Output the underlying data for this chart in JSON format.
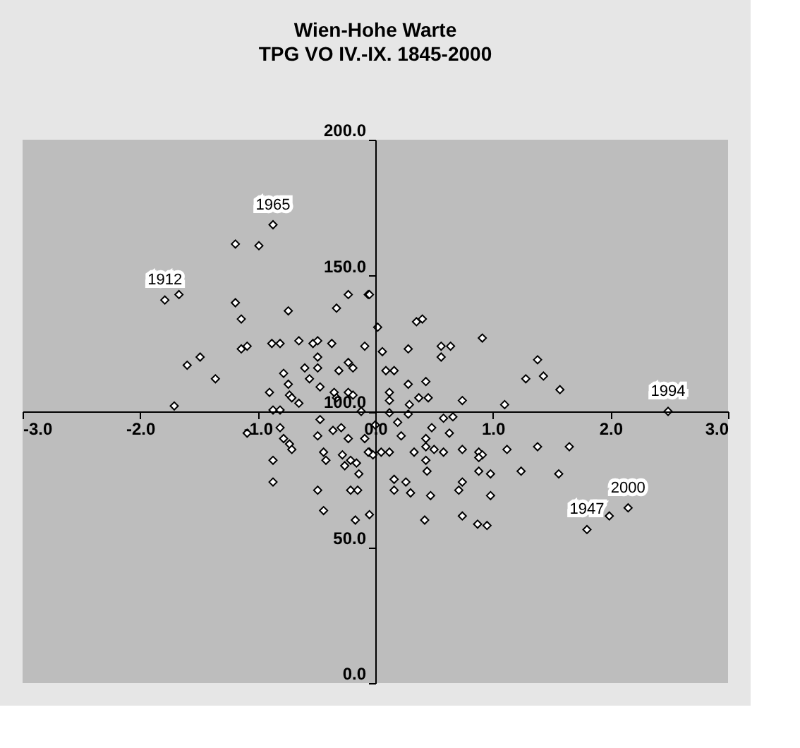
{
  "chart_data": {
    "type": "scatter",
    "title": "Wien-Hohe Warte",
    "subtitle": "TPG VO IV.-IX. 1845-2000",
    "marker": "diamond",
    "grid": false,
    "legend": false,
    "xlim": [
      -3,
      3
    ],
    "ylim": [
      0,
      200
    ],
    "xticks": [
      {
        "value": -3,
        "label": "-3.0"
      },
      {
        "value": -2,
        "label": "-2.0"
      },
      {
        "value": -1,
        "label": "-1.0"
      },
      {
        "value": 0,
        "label": "0.0"
      },
      {
        "value": 1,
        "label": "1.0"
      },
      {
        "value": 2,
        "label": "2.0"
      },
      {
        "value": 3,
        "label": "3.0"
      }
    ],
    "yticks": [
      {
        "value": 0,
        "label": "0.0"
      },
      {
        "value": 50,
        "label": "50.0"
      },
      {
        "value": 100,
        "label": "100.0"
      },
      {
        "value": 150,
        "label": "150.0"
      },
      {
        "value": 200,
        "label": "200.0"
      }
    ],
    "annotations": [
      {
        "text": "1912",
        "x": -1.79,
        "y": 141
      },
      {
        "text": "1965",
        "x": -0.87,
        "y": 168.7
      },
      {
        "text": "1994",
        "x": 2.49,
        "y": 100
      },
      {
        "text": "2000",
        "x": 2.15,
        "y": 64.5
      },
      {
        "text": "1947",
        "x": 1.8,
        "y": 56.5
      }
    ],
    "series": [
      {
        "color": "#ffffff",
        "x": [
          -1.79,
          -1.67,
          -1.19,
          -0.99,
          -0.87,
          -1.19,
          -1.14,
          -0.74,
          -0.23,
          -0.06,
          -0.33,
          0.02,
          -1.14,
          -1.09,
          -0.88,
          -0.81,
          -0.65,
          -0.53,
          -0.49,
          -0.37,
          -0.09,
          -1.6,
          -1.49,
          -1.36,
          -0.49,
          -0.78,
          -0.74,
          -0.6,
          -0.49,
          -0.56,
          -0.47,
          -0.31,
          -0.23,
          -0.19,
          -0.9,
          -0.73,
          -0.71,
          -0.65,
          -0.35,
          -0.33,
          -0.23,
          -0.19,
          -1.71,
          -0.87,
          -0.81,
          -0.05,
          0.06,
          0.35,
          0.4,
          0.28,
          0.56,
          0.64,
          0.91,
          0.56,
          0.09,
          0.16,
          1.38,
          1.28,
          1.43,
          1.57,
          0.28,
          0.43,
          0.12,
          0.12,
          0.37,
          0.45,
          0.29,
          0.74,
          1.1,
          2.49,
          0.0,
          0.12,
          0.19,
          0.28,
          0.22,
          -0.05,
          -0.02,
          0.05,
          0.12,
          0.33,
          0.48,
          0.58,
          0.66,
          0.43,
          0.43,
          0.5,
          0.63,
          0.58,
          0.74,
          0.88,
          0.91,
          0.88,
          1.12,
          1.38,
          1.65,
          0.43,
          0.44,
          0.88,
          0.98,
          1.24,
          1.56,
          0.16,
          0.26,
          0.16,
          0.3,
          0.47,
          0.74,
          0.71,
          0.98,
          -0.05,
          0.42,
          0.74,
          0.87,
          0.95,
          2.15,
          1.99,
          1.8,
          -1.09,
          -0.81,
          -0.78,
          -0.73,
          -0.71,
          -0.87,
          -0.87,
          -0.49,
          -0.47,
          -0.36,
          -0.29,
          -0.23,
          -0.44,
          -0.42,
          -0.28,
          -0.26,
          -0.21,
          -0.16,
          -0.14,
          -0.49,
          -0.44,
          -0.21,
          -0.15,
          -0.17,
          -0.12,
          -0.09,
          -0.06
        ],
        "values": [
          141,
          143,
          161.6,
          161,
          168.7,
          140,
          134,
          137,
          143,
          143,
          138,
          131,
          123,
          124,
          125,
          125,
          126,
          125,
          126,
          125,
          124,
          117,
          120,
          112,
          120,
          114,
          110,
          116,
          116,
          112,
          109,
          115,
          118,
          116,
          107,
          106,
          105,
          103,
          107,
          105,
          107,
          106,
          102,
          100.5,
          100.5,
          143,
          122,
          133,
          134,
          123,
          124,
          124,
          127,
          120,
          115,
          115,
          119,
          112,
          113,
          108,
          110,
          111,
          107,
          104,
          105,
          105,
          102.5,
          104,
          102.5,
          100,
          95,
          99.5,
          96,
          99,
          91,
          85,
          84,
          85,
          85,
          85,
          94,
          97.5,
          98,
          90,
          87,
          86,
          92,
          85,
          86,
          85,
          84,
          83,
          86,
          87,
          87,
          82,
          78,
          78,
          77,
          78,
          77,
          75,
          74,
          71,
          70,
          69,
          74,
          71,
          69,
          62,
          60,
          61.5,
          58.5,
          58,
          64.5,
          61.5,
          56.5,
          92,
          94,
          90,
          88,
          86,
          82,
          74,
          91,
          97,
          93,
          94,
          90,
          85,
          82,
          84,
          80,
          82,
          81,
          77,
          71,
          63.5,
          71,
          71,
          60,
          100,
          90,
          85
        ]
      }
    ]
  }
}
